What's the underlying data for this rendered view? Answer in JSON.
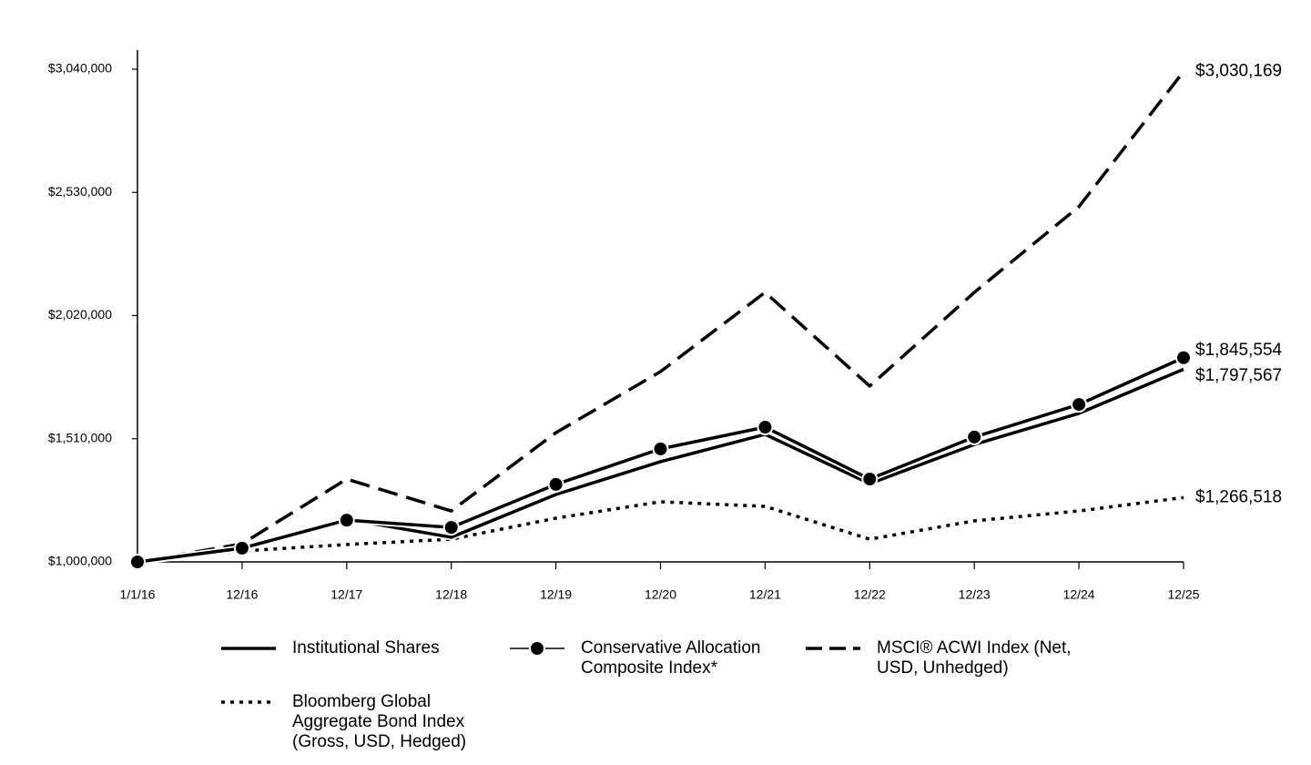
{
  "chart_data": {
    "type": "line",
    "categories": [
      "1/1/16",
      "12/16",
      "12/17",
      "12/18",
      "12/19",
      "12/20",
      "12/21",
      "12/22",
      "12/23",
      "12/24",
      "12/25"
    ],
    "ylim": [
      1000000,
      3040000
    ],
    "yticks": [
      {
        "value": 1000000,
        "label": "$1,000,000"
      },
      {
        "value": 1510000,
        "label": "$1,510,000"
      },
      {
        "value": 2020000,
        "label": "$2,020,000"
      },
      {
        "value": 2530000,
        "label": "$2,530,000"
      },
      {
        "value": 3040000,
        "label": "$3,040,000"
      }
    ],
    "series": [
      {
        "name": "Institutional Shares",
        "color": "#000000",
        "line_style": "solid",
        "values": [
          1000000,
          1052800,
          1177000,
          1102000,
          1279000,
          1415000,
          1528000,
          1324000,
          1486000,
          1615000,
          1797567
        ],
        "value_labels": [
          null,
          null,
          null,
          null,
          null,
          null,
          null,
          null,
          null,
          null,
          "$1,797,567"
        ]
      },
      {
        "name": "Conservative Allocation Composite Index*",
        "color": "#000000",
        "line_style": "markers",
        "values": [
          1000000,
          1057000,
          1173000,
          1143000,
          1321000,
          1468000,
          1558000,
          1343000,
          1517000,
          1652000,
          1845554
        ],
        "value_labels": [
          null,
          null,
          null,
          null,
          null,
          null,
          null,
          null,
          null,
          null,
          "$1,845,554"
        ]
      },
      {
        "name": "MSCI® ACWI Index (Net, USD, Unhedged)",
        "color": "#000000",
        "line_style": "dashed",
        "values": [
          1000000,
          1075000,
          1343000,
          1211000,
          1535000,
          1788000,
          2116000,
          1728000,
          2116000,
          2471000,
          3030169
        ],
        "value_labels": [
          null,
          null,
          null,
          null,
          null,
          null,
          null,
          null,
          null,
          null,
          "$3,030,169"
        ]
      },
      {
        "name": "Bloomberg Global Aggregate Bond Index (Gross, USD, Hedged)",
        "color": "#000000",
        "line_style": "dotted",
        "values": [
          1000000,
          1045000,
          1072000,
          1094000,
          1181000,
          1249000,
          1230000,
          1094000,
          1170000,
          1211000,
          1266518
        ],
        "value_labels": [
          null,
          null,
          null,
          null,
          null,
          null,
          null,
          null,
          null,
          null,
          "$1,266,518"
        ]
      }
    ]
  }
}
